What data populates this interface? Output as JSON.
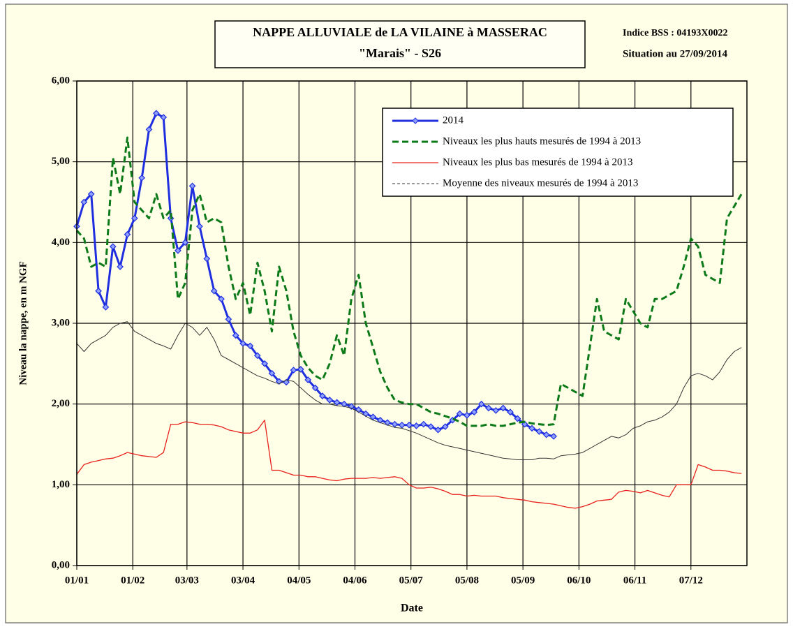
{
  "chart_data": {
    "type": "line",
    "title": "NAPPE ALLUVIALE de LA VILAINE à MASSERAC",
    "subtitle": "\"Marais\" - S26",
    "annotations": [
      "Indice BSS : 04193X0022",
      "Situation au 27/09/2014"
    ],
    "x_label": "Date",
    "y_label": "Niveau la nappe, en m NGF",
    "xlim": [
      0,
      371
    ],
    "ylim": [
      0,
      6
    ],
    "xticks": [
      {
        "value": 0,
        "label": "01/01"
      },
      {
        "value": 31,
        "label": "01/02"
      },
      {
        "value": 61,
        "label": "03/03"
      },
      {
        "value": 92,
        "label": "03/04"
      },
      {
        "value": 123,
        "label": "04/05"
      },
      {
        "value": 154,
        "label": "04/06"
      },
      {
        "value": 185,
        "label": "05/07"
      },
      {
        "value": 216,
        "label": "05/08"
      },
      {
        "value": 247,
        "label": "05/09"
      },
      {
        "value": 278,
        "label": "06/10"
      },
      {
        "value": 309,
        "label": "06/11"
      },
      {
        "value": 340,
        "label": "07/12"
      }
    ],
    "yticks": [
      {
        "value": 0,
        "label": "0,00"
      },
      {
        "value": 1,
        "label": "1,00"
      },
      {
        "value": 2,
        "label": "2,00"
      },
      {
        "value": 3,
        "label": "3,00"
      },
      {
        "value": 4,
        "label": "4,00"
      },
      {
        "value": 5,
        "label": "5,00"
      },
      {
        "value": 6,
        "label": "6,00"
      }
    ],
    "grid": true,
    "legend": "top-right",
    "x": [
      0,
      4,
      8,
      12,
      16,
      20,
      24,
      28,
      32,
      36,
      40,
      44,
      48,
      52,
      56,
      60,
      64,
      68,
      72,
      76,
      80,
      84,
      88,
      92,
      96,
      100,
      104,
      108,
      112,
      116,
      120,
      124,
      128,
      132,
      136,
      140,
      144,
      148,
      152,
      156,
      160,
      164,
      168,
      172,
      176,
      180,
      184,
      188,
      192,
      196,
      200,
      204,
      208,
      212,
      216,
      220,
      224,
      228,
      232,
      236,
      240,
      244,
      248,
      252,
      256,
      260,
      264,
      268,
      272,
      276,
      280,
      284,
      288,
      292,
      296,
      300,
      304,
      308,
      312,
      316,
      320,
      324,
      328,
      332,
      336,
      340,
      344,
      348,
      352,
      356,
      360,
      364,
      368
    ],
    "series": [
      {
        "name": "2014",
        "color": "#1f2fe0",
        "line_style": "solid",
        "marker": "diamond",
        "values": [
          4.2,
          4.5,
          4.6,
          3.4,
          3.2,
          3.95,
          3.7,
          4.1,
          4.3,
          4.8,
          5.4,
          5.6,
          5.55,
          4.3,
          3.9,
          4.0,
          4.7,
          4.2,
          3.8,
          3.4,
          3.3,
          3.05,
          2.85,
          2.75,
          2.72,
          2.6,
          2.5,
          2.38,
          2.28,
          2.27,
          2.42,
          2.43,
          2.3,
          2.2,
          2.1,
          2.05,
          2.02,
          2.0,
          1.97,
          1.93,
          1.88,
          1.84,
          1.8,
          1.77,
          1.75,
          1.74,
          1.74,
          1.73,
          1.75,
          1.72,
          1.68,
          1.72,
          1.8,
          1.88,
          1.86,
          1.9,
          2.0,
          1.95,
          1.92,
          1.95,
          1.9,
          1.82,
          1.75,
          1.7,
          1.66,
          1.62,
          1.6,
          null,
          null,
          null,
          null,
          null,
          null,
          null,
          null,
          null,
          null,
          null,
          null,
          null,
          null,
          null,
          null,
          null,
          null,
          null,
          null,
          null,
          null,
          null,
          null,
          null,
          null
        ]
      },
      {
        "name": "Niveaux les plus hauts mesurés de 1994 à 2013",
        "color": "#0d7a1a",
        "line_style": "dashed",
        "marker": "none",
        "values": [
          4.15,
          4.05,
          3.7,
          3.75,
          3.7,
          5.05,
          4.6,
          5.3,
          4.5,
          4.4,
          4.3,
          4.6,
          4.3,
          4.4,
          3.3,
          3.5,
          4.4,
          4.6,
          4.25,
          4.3,
          4.25,
          3.7,
          3.3,
          3.5,
          3.1,
          3.75,
          3.4,
          2.9,
          3.7,
          3.4,
          2.9,
          2.6,
          2.45,
          2.35,
          2.3,
          2.5,
          2.85,
          2.6,
          3.3,
          3.6,
          3.0,
          2.7,
          2.4,
          2.2,
          2.05,
          2.02,
          2.0,
          2.0,
          1.95,
          1.9,
          1.88,
          1.85,
          1.82,
          1.78,
          1.73,
          1.73,
          1.73,
          1.75,
          1.73,
          1.73,
          1.75,
          1.77,
          1.78,
          1.76,
          1.75,
          1.74,
          1.75,
          2.25,
          2.2,
          2.15,
          2.1,
          2.7,
          3.3,
          2.9,
          2.85,
          2.8,
          3.3,
          3.15,
          3.0,
          2.95,
          3.3,
          3.3,
          3.35,
          3.4,
          3.7,
          4.05,
          3.95,
          3.6,
          3.55,
          3.5,
          4.3,
          4.45,
          4.6
        ]
      },
      {
        "name": "Niveaux les plus bas mesurés de 1994 à 2013",
        "color": "#e8201a",
        "line_style": "solid",
        "marker": "none",
        "values": [
          1.13,
          1.25,
          1.28,
          1.3,
          1.32,
          1.33,
          1.36,
          1.4,
          1.38,
          1.36,
          1.35,
          1.34,
          1.4,
          1.75,
          1.75,
          1.78,
          1.77,
          1.75,
          1.75,
          1.74,
          1.72,
          1.68,
          1.66,
          1.64,
          1.64,
          1.68,
          1.8,
          1.18,
          1.18,
          1.15,
          1.12,
          1.12,
          1.1,
          1.1,
          1.08,
          1.06,
          1.05,
          1.07,
          1.08,
          1.08,
          1.08,
          1.09,
          1.08,
          1.09,
          1.1,
          1.08,
          1.0,
          0.96,
          0.96,
          0.97,
          0.95,
          0.92,
          0.88,
          0.88,
          0.86,
          0.87,
          0.86,
          0.86,
          0.86,
          0.84,
          0.83,
          0.82,
          0.81,
          0.79,
          0.78,
          0.77,
          0.76,
          0.74,
          0.72,
          0.71,
          0.73,
          0.76,
          0.8,
          0.81,
          0.82,
          0.91,
          0.93,
          0.92,
          0.9,
          0.93,
          0.9,
          0.87,
          0.85,
          1.0,
          1.0,
          1.0,
          1.25,
          1.22,
          1.18,
          1.18,
          1.17,
          1.15,
          1.14
        ]
      },
      {
        "name": "Moyenne des niveaux mesurés de 1994 à 2013",
        "color": "#333333",
        "line_style": "thin",
        "marker": "none",
        "values": [
          2.75,
          2.65,
          2.75,
          2.8,
          2.85,
          2.95,
          3.0,
          3.02,
          2.9,
          2.85,
          2.8,
          2.75,
          2.72,
          2.68,
          2.85,
          3.0,
          2.95,
          2.85,
          2.95,
          2.8,
          2.6,
          2.55,
          2.5,
          2.45,
          2.4,
          2.35,
          2.32,
          2.28,
          2.25,
          2.3,
          2.28,
          2.2,
          2.12,
          2.05,
          2.0,
          2.0,
          1.98,
          1.97,
          1.95,
          1.9,
          1.85,
          1.8,
          1.77,
          1.74,
          1.71,
          1.7,
          1.67,
          1.64,
          1.6,
          1.56,
          1.52,
          1.49,
          1.47,
          1.45,
          1.43,
          1.41,
          1.39,
          1.37,
          1.35,
          1.33,
          1.32,
          1.31,
          1.31,
          1.31,
          1.33,
          1.33,
          1.32,
          1.36,
          1.37,
          1.38,
          1.4,
          1.45,
          1.5,
          1.55,
          1.6,
          1.58,
          1.62,
          1.7,
          1.73,
          1.78,
          1.8,
          1.84,
          1.9,
          2.0,
          2.2,
          2.35,
          2.38,
          2.35,
          2.3,
          2.4,
          2.55,
          2.65,
          2.7
        ]
      }
    ]
  }
}
